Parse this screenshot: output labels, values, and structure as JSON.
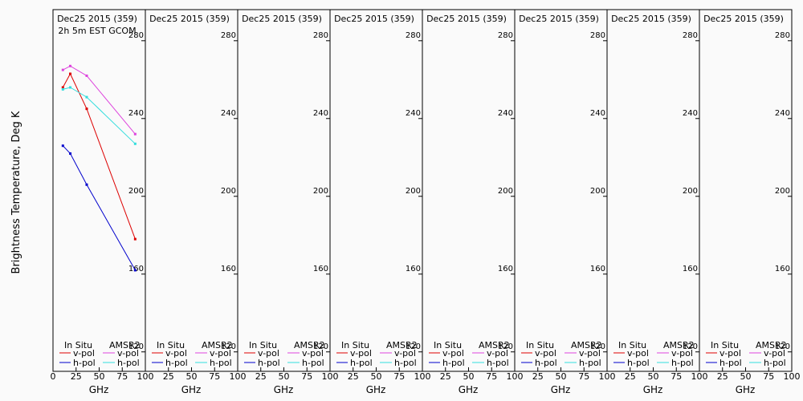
{
  "figure": {
    "ylabel": "Brightness Temperature, Deg K",
    "xlabel": "GHz"
  },
  "legend": {
    "insitu_title": "In Situ",
    "amsr2_title": "AMSR2",
    "vpol": "v-pol",
    "hpol": "h-pol",
    "colors": {
      "insitu_v": "#dd0000",
      "insitu_h": "#0000cc",
      "amsr2_v": "#dd44dd",
      "amsr2_h": "#33dddd"
    }
  },
  "chart_data": [
    {
      "type": "line",
      "title": "Dec25 2015 (359)",
      "subtitle": "2h 5m EST GCOM",
      "xlim": [
        0,
        100
      ],
      "ylim": [
        110,
        296
      ],
      "yticks": [
        120,
        160,
        200,
        240,
        280
      ],
      "xticks": [
        0,
        25,
        50,
        75,
        100
      ],
      "series": [
        {
          "name": "In Situ v-pol",
          "color": "#dd0000",
          "x": [
            10.7,
            18.7,
            36.5,
            89.0
          ],
          "y": [
            256,
            263,
            245,
            178
          ]
        },
        {
          "name": "In Situ h-pol",
          "color": "#0000cc",
          "x": [
            10.7,
            18.7,
            36.5,
            89.0
          ],
          "y": [
            226,
            222,
            206,
            162
          ]
        },
        {
          "name": "AMSR2 v-pol",
          "color": "#dd44dd",
          "x": [
            10.7,
            18.7,
            36.5,
            89.0
          ],
          "y": [
            265,
            267,
            262,
            232
          ]
        },
        {
          "name": "AMSR2 h-pol",
          "color": "#33dddd",
          "x": [
            10.7,
            18.7,
            36.5,
            89.0
          ],
          "y": [
            255,
            256,
            251,
            227
          ]
        }
      ]
    },
    {
      "type": "line",
      "title": "Dec25 2015 (359)",
      "subtitle": "",
      "xlim": [
        0,
        100
      ],
      "ylim": [
        110,
        296
      ],
      "yticks": [
        120,
        160,
        200,
        240,
        280
      ],
      "xticks": [
        0,
        25,
        50,
        75,
        100
      ],
      "series": []
    },
    {
      "type": "line",
      "title": "Dec25 2015 (359)",
      "subtitle": "",
      "xlim": [
        0,
        100
      ],
      "ylim": [
        110,
        296
      ],
      "yticks": [
        120,
        160,
        200,
        240,
        280
      ],
      "xticks": [
        0,
        25,
        50,
        75,
        100
      ],
      "series": []
    },
    {
      "type": "line",
      "title": "Dec25 2015 (359)",
      "subtitle": "",
      "xlim": [
        0,
        100
      ],
      "ylim": [
        110,
        296
      ],
      "yticks": [
        120,
        160,
        200,
        240,
        280
      ],
      "xticks": [
        0,
        25,
        50,
        75,
        100
      ],
      "series": []
    },
    {
      "type": "line",
      "title": "Dec25 2015 (359)",
      "subtitle": "",
      "xlim": [
        0,
        100
      ],
      "ylim": [
        110,
        296
      ],
      "yticks": [
        120,
        160,
        200,
        240,
        280
      ],
      "xticks": [
        0,
        25,
        50,
        75,
        100
      ],
      "series": []
    },
    {
      "type": "line",
      "title": "Dec25 2015 (359)",
      "subtitle": "",
      "xlim": [
        0,
        100
      ],
      "ylim": [
        110,
        296
      ],
      "yticks": [
        120,
        160,
        200,
        240,
        280
      ],
      "xticks": [
        0,
        25,
        50,
        75,
        100
      ],
      "series": []
    },
    {
      "type": "line",
      "title": "Dec25 2015 (359)",
      "subtitle": "",
      "xlim": [
        0,
        100
      ],
      "ylim": [
        110,
        296
      ],
      "yticks": [
        120,
        160,
        200,
        240,
        280
      ],
      "xticks": [
        0,
        25,
        50,
        75,
        100
      ],
      "series": []
    },
    {
      "type": "line",
      "title": "Dec25 2015 (359)",
      "subtitle": "",
      "xlim": [
        0,
        100
      ],
      "ylim": [
        110,
        296
      ],
      "yticks": [
        120,
        160,
        200,
        240,
        280
      ],
      "xticks": [
        0,
        25,
        50,
        75,
        100
      ],
      "series": []
    }
  ]
}
